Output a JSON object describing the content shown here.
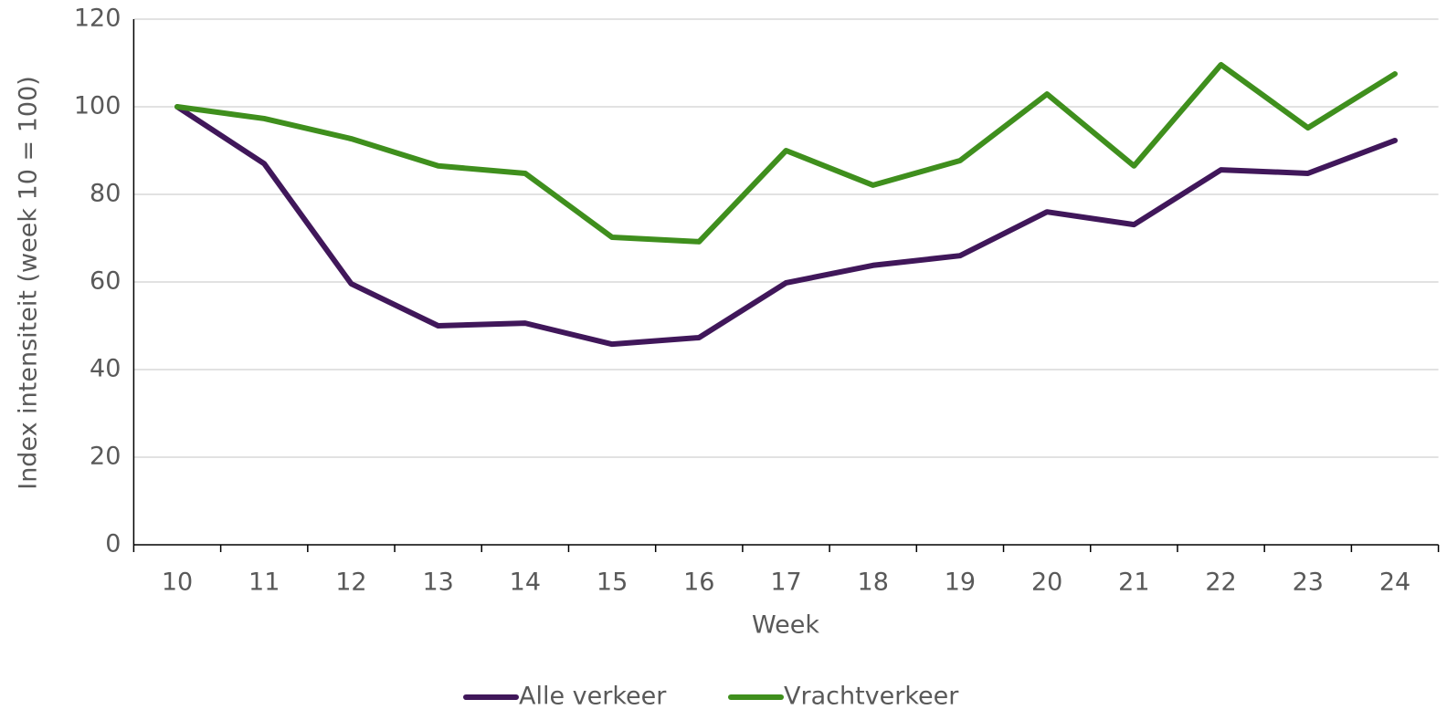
{
  "chart_data": {
    "type": "line",
    "x_label": "Week",
    "y_label": "Index intensiteit (week 10 = 100)",
    "categories": [
      "10",
      "11",
      "12",
      "13",
      "14",
      "15",
      "16",
      "17",
      "18",
      "19",
      "20",
      "21",
      "22",
      "23",
      "24"
    ],
    "series": [
      {
        "name": "Alle verkeer",
        "color": "#40175a",
        "values": [
          100,
          87,
          59.6,
          50,
          50.6,
          45.8,
          47.3,
          59.8,
          63.8,
          66,
          76,
          73.1,
          85.6,
          84.8,
          92.3
        ]
      },
      {
        "name": "Vrachtverkeer",
        "color": "#3f8f1d",
        "values": [
          100,
          97.3,
          92.7,
          86.5,
          84.8,
          70.2,
          69.2,
          90,
          82.1,
          87.7,
          102.9,
          86.5,
          109.6,
          95.2,
          107.5
        ]
      }
    ],
    "ylim": [
      0,
      120
    ],
    "yticks": [
      0,
      20,
      40,
      60,
      80,
      100,
      120
    ],
    "grid": true,
    "legend": "bottom"
  }
}
